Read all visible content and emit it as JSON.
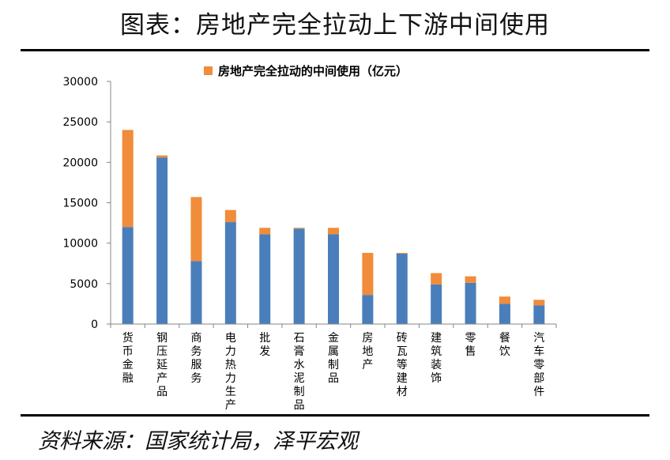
{
  "figure": {
    "title": "图表：房地产完全拉动上下游中间使用",
    "source": "资料来源：国家统计局，泽平宏观"
  },
  "colors": {
    "blue": "#4a7ebb",
    "orange": "#f08c3a",
    "axis": "#868686"
  },
  "chart_data": {
    "type": "bar",
    "stacked": true,
    "legend": {
      "position": "top-center",
      "entries": [
        "房地产完全拉动的中间使用（亿元）"
      ]
    },
    "ylim": [
      0,
      30000
    ],
    "yticks": [
      "0",
      "5000",
      "10000",
      "15000",
      "20000",
      "25000",
      "30000"
    ],
    "grid": false,
    "categories": [
      "货币金融",
      "钢压延产品",
      "商务服务",
      "电力热力生产",
      "批发",
      "石膏水泥制品",
      "金属制品",
      "房地产",
      "砖瓦等建材",
      "建筑装饰",
      "零售",
      "餐饮",
      "汽车零部件"
    ],
    "series": [
      {
        "values": [
          12000,
          20600,
          7800,
          12600,
          11100,
          11800,
          11100,
          3600,
          8700,
          4900,
          5100,
          2500,
          2300
        ]
      },
      {
        "name": "房地产完全拉动的中间使用（亿元）",
        "values": [
          12000,
          250,
          7900,
          1500,
          800,
          100,
          800,
          5200,
          100,
          1400,
          800,
          900,
          700
        ]
      }
    ]
  }
}
